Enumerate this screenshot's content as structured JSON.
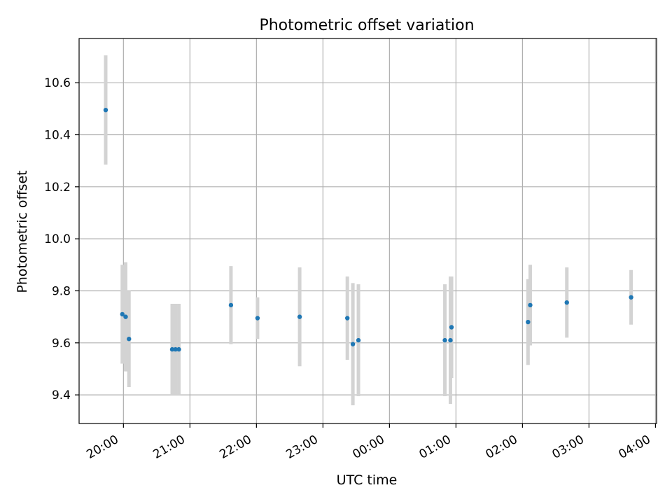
{
  "chart_data": {
    "type": "scatter",
    "title": "Photometric offset variation",
    "xlabel": "UTC time",
    "ylabel": "Photometric offset",
    "x_axis_type": "time",
    "x_start": "19:20",
    "x_end": "04:01",
    "xticks": [
      "20:00",
      "21:00",
      "22:00",
      "23:00",
      "00:00",
      "01:00",
      "02:00",
      "03:00",
      "04:00"
    ],
    "ylim": [
      9.29,
      10.77
    ],
    "yticks": [
      "9.4",
      "9.6",
      "9.8",
      "10.0",
      "10.2",
      "10.4",
      "10.6"
    ],
    "grid": true,
    "colors": {
      "point": "#1f77b4",
      "errorbar": "#d3d3d3",
      "grid": "#b0b0b0"
    },
    "points": [
      {
        "time": "19:44",
        "y": 10.495,
        "err": 0.21
      },
      {
        "time": "19:59",
        "y": 9.71,
        "err": 0.19
      },
      {
        "time": "20:02",
        "y": 9.7,
        "err": 0.21
      },
      {
        "time": "20:05",
        "y": 9.615,
        "err": 0.185
      },
      {
        "time": "20:44",
        "y": 9.575,
        "err": 0.175
      },
      {
        "time": "20:47",
        "y": 9.575,
        "err": 0.175
      },
      {
        "time": "20:50",
        "y": 9.575,
        "err": 0.175
      },
      {
        "time": "21:37",
        "y": 9.745,
        "err": 0.15
      },
      {
        "time": "22:01",
        "y": 9.695,
        "err": 0.08
      },
      {
        "time": "22:39",
        "y": 9.7,
        "err": 0.19
      },
      {
        "time": "23:22",
        "y": 9.695,
        "err": 0.16
      },
      {
        "time": "23:27",
        "y": 9.595,
        "err": 0.235
      },
      {
        "time": "23:32",
        "y": 9.61,
        "err": 0.215
      },
      {
        "time": "00:50",
        "y": 9.61,
        "err": 0.215
      },
      {
        "time": "00:55",
        "y": 9.61,
        "err": 0.245
      },
      {
        "time": "00:56",
        "y": 9.66,
        "err": 0.195
      },
      {
        "time": "02:05",
        "y": 9.68,
        "err": 0.165
      },
      {
        "time": "02:07",
        "y": 9.745,
        "err": 0.155
      },
      {
        "time": "02:40",
        "y": 9.755,
        "err": 0.135
      },
      {
        "time": "03:38",
        "y": 9.775,
        "err": 0.105
      }
    ]
  }
}
